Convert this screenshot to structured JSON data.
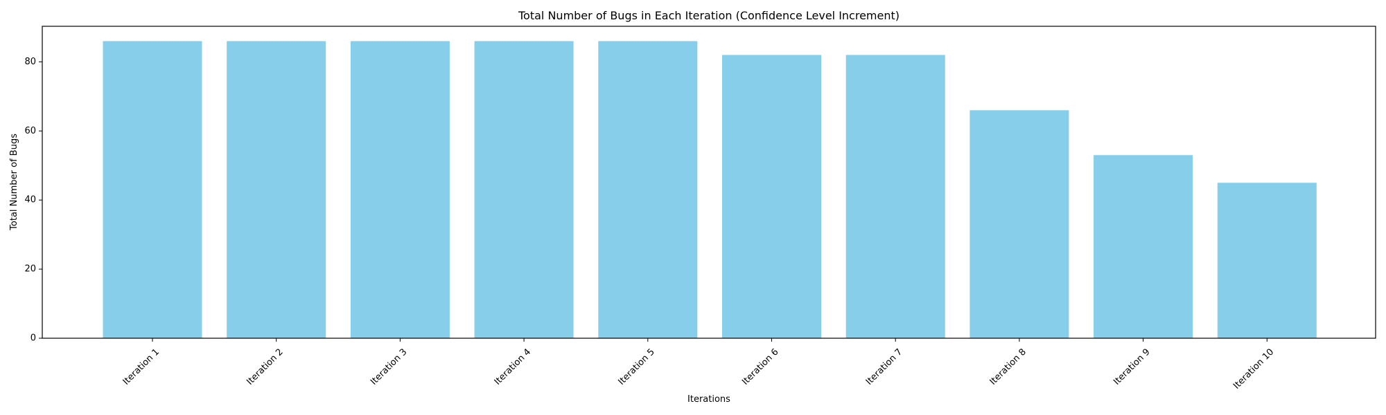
{
  "chart_data": {
    "type": "bar",
    "title": "Total Number of Bugs in Each Iteration (Confidence Level Increment)",
    "xlabel": "Iterations",
    "ylabel": "Total Number of Bugs",
    "categories": [
      "Iteration 1",
      "Iteration 2",
      "Iteration 3",
      "Iteration 4",
      "Iteration 5",
      "Iteration 6",
      "Iteration 7",
      "Iteration 8",
      "Iteration 9",
      "Iteration 10"
    ],
    "values": [
      86,
      86,
      86,
      86,
      86,
      82,
      82,
      66,
      53,
      45
    ],
    "ylim": [
      0,
      90.3
    ],
    "yticks": [
      0,
      20,
      40,
      60,
      80
    ],
    "bar_color": "#87CEEB",
    "grid": false,
    "legend": "none"
  }
}
